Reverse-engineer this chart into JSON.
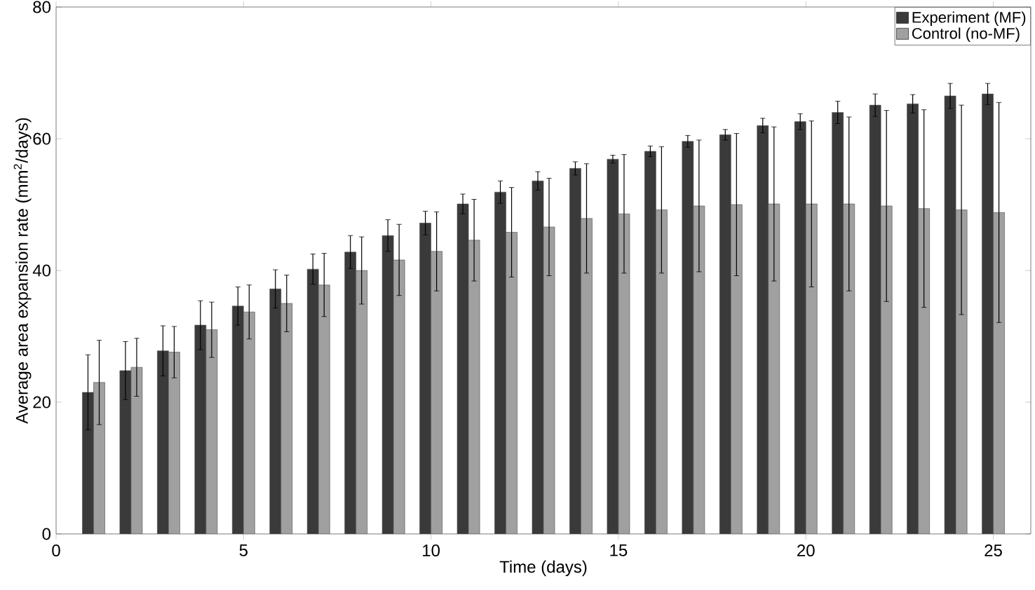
{
  "chart_data": {
    "type": "bar",
    "xlabel": "Time (days)",
    "ylabel": "Average area expansion rate (mm$^{2}$/days)",
    "x": [
      1,
      2,
      3,
      4,
      5,
      6,
      7,
      8,
      9,
      10,
      11,
      12,
      13,
      14,
      15,
      16,
      17,
      18,
      19,
      20,
      21,
      22,
      23,
      24,
      25
    ],
    "series": [
      {
        "name": "Experiment (MF)",
        "color": "#3a3a3a",
        "values": [
          21.5,
          24.8,
          27.8,
          31.7,
          34.6,
          37.2,
          40.2,
          42.8,
          45.3,
          47.2,
          50.1,
          51.9,
          53.6,
          55.5,
          56.9,
          58.1,
          59.6,
          60.6,
          62.0,
          62.6,
          64.0,
          65.1,
          65.3,
          66.5,
          66.8
        ],
        "errors": [
          5.7,
          4.4,
          3.8,
          3.7,
          2.9,
          2.9,
          2.3,
          2.5,
          2.4,
          1.8,
          1.5,
          1.7,
          1.4,
          1.0,
          0.6,
          0.8,
          0.9,
          0.8,
          1.1,
          1.2,
          1.7,
          1.7,
          1.4,
          1.9,
          1.6
        ]
      },
      {
        "name": "Control (no-MF)",
        "color": "#a0a0a0",
        "values": [
          23.0,
          25.3,
          27.6,
          31.0,
          33.7,
          35.0,
          37.8,
          40.0,
          41.6,
          42.9,
          44.6,
          45.8,
          46.6,
          47.9,
          48.6,
          49.2,
          49.8,
          50.0,
          50.1,
          50.1,
          50.1,
          49.8,
          49.4,
          49.2,
          48.8
        ],
        "errors": [
          6.4,
          4.4,
          3.9,
          4.2,
          4.1,
          4.3,
          4.8,
          5.1,
          5.4,
          6.0,
          6.2,
          6.8,
          7.4,
          8.3,
          9.0,
          9.6,
          10.0,
          10.8,
          11.7,
          12.6,
          13.2,
          14.5,
          15.0,
          15.9,
          16.7
        ]
      }
    ],
    "xlim": [
      0,
      26
    ],
    "xticks": [
      0,
      5,
      10,
      15,
      20,
      25
    ],
    "ylim": [
      0,
      80
    ],
    "yticks": [
      0,
      20,
      40,
      60,
      80
    ],
    "legend": "top right"
  }
}
